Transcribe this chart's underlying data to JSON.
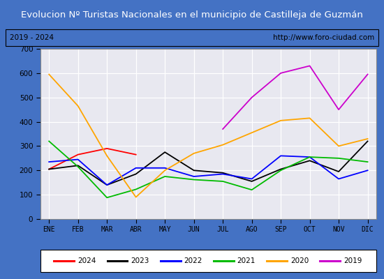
{
  "title": "Evolucion Nº Turistas Nacionales en el municipio de Castilleja de Guzmán",
  "subtitle_left": "2019 - 2024",
  "subtitle_right": "http://www.foro-ciudad.com",
  "title_bg_color": "#4472c4",
  "title_text_color": "#ffffff",
  "subtitle_bg_color": "#ffffff",
  "subtitle_text_color": "#000000",
  "plot_bg_color": "#e8e8f0",
  "months": [
    "ENE",
    "FEB",
    "MAR",
    "ABR",
    "MAY",
    "JUN",
    "JUL",
    "AGO",
    "SEP",
    "OCT",
    "NOV",
    "DIC"
  ],
  "ylim": [
    0,
    700
  ],
  "yticks": [
    0,
    100,
    200,
    300,
    400,
    500,
    600,
    700
  ],
  "series": {
    "2024": {
      "color": "#ff0000",
      "values": [
        205,
        265,
        290,
        265,
        null,
        null,
        null,
        null,
        null,
        null,
        null,
        null
      ]
    },
    "2023": {
      "color": "#000000",
      "values": [
        205,
        220,
        140,
        185,
        275,
        200,
        190,
        155,
        205,
        240,
        195,
        320
      ]
    },
    "2022": {
      "color": "#0000ff",
      "values": [
        235,
        245,
        140,
        210,
        210,
        175,
        185,
        165,
        260,
        255,
        165,
        200
      ]
    },
    "2021": {
      "color": "#00bb00",
      "values": [
        320,
        215,
        88,
        122,
        175,
        162,
        155,
        120,
        200,
        255,
        250,
        235
      ]
    },
    "2020": {
      "color": "#ffa500",
      "values": [
        595,
        465,
        260,
        90,
        200,
        270,
        305,
        355,
        405,
        415,
        300,
        330
      ]
    },
    "2019": {
      "color": "#cc00cc",
      "values": [
        null,
        null,
        null,
        null,
        null,
        null,
        370,
        500,
        600,
        630,
        450,
        595
      ]
    }
  },
  "legend_entries": [
    [
      "2024",
      "#ff0000"
    ],
    [
      "2023",
      "#000000"
    ],
    [
      "2022",
      "#0000ff"
    ],
    [
      "2021",
      "#00bb00"
    ],
    [
      "2020",
      "#ffa500"
    ],
    [
      "2019",
      "#cc00cc"
    ]
  ]
}
